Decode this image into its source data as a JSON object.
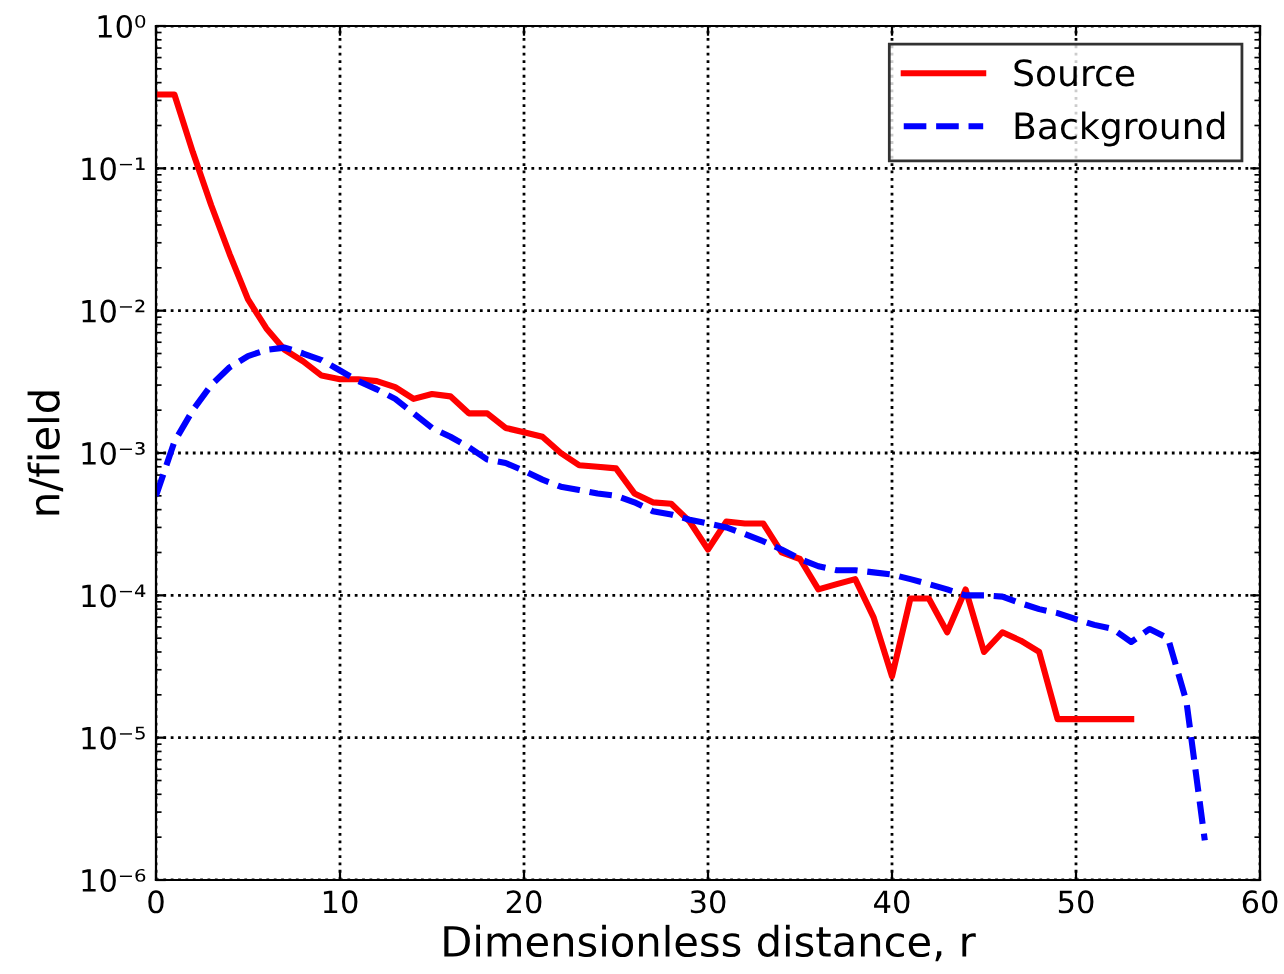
{
  "chart_data": {
    "type": "line",
    "xlabel": "Dimensionless distance, r",
    "ylabel": "n/field",
    "log": "y",
    "grid": true,
    "legend": "top right",
    "xlim": [
      0,
      60
    ],
    "xticks": [
      0,
      10,
      20,
      30,
      40,
      50,
      60
    ],
    "ylim": [
      1e-06,
      1
    ],
    "yticks": [
      {
        "value": 1e-06,
        "label": "10⁻⁶"
      },
      {
        "value": 1e-05,
        "label": "10⁻⁵"
      },
      {
        "value": 0.0001,
        "label": "10⁻⁴"
      },
      {
        "value": 0.001,
        "label": "10⁻³"
      },
      {
        "value": 0.01,
        "label": "10⁻²"
      },
      {
        "value": 0.1,
        "label": "10⁻¹"
      },
      {
        "value": 1,
        "label": "10⁰"
      }
    ],
    "series": [
      {
        "name": "Source",
        "color": "#ff0000",
        "line_style": "solid",
        "x": [
          0,
          1,
          2,
          3,
          4,
          5,
          6,
          7,
          8,
          9,
          10,
          11,
          12,
          13,
          14,
          15,
          16,
          17,
          18,
          19,
          20,
          21,
          22,
          23,
          24,
          25,
          26,
          27,
          28,
          29,
          30,
          31,
          32,
          33,
          34,
          35,
          36,
          37,
          38,
          39,
          40,
          41,
          42,
          43,
          44,
          45,
          46,
          47,
          48,
          49,
          50,
          51,
          52,
          53
        ],
        "values": [
          0.33,
          0.33,
          0.13,
          0.055,
          0.025,
          0.012,
          0.0075,
          0.0053,
          0.0044,
          0.0035,
          0.0033,
          0.0033,
          0.0032,
          0.0029,
          0.0024,
          0.0026,
          0.0025,
          0.0019,
          0.0019,
          0.0015,
          0.0014,
          0.0013,
          0.001,
          0.00082,
          0.0008,
          0.00078,
          0.00052,
          0.00045,
          0.00044,
          0.00033,
          0.00021,
          0.00033,
          0.00032,
          0.00032,
          0.0002,
          0.00018,
          0.00011,
          0.00012,
          0.00013,
          7e-05,
          2.7e-05,
          9.5e-05,
          9.5e-05,
          5.5e-05,
          0.00011,
          4e-05,
          5.5e-05,
          4.8e-05,
          4e-05,
          1.35e-05,
          1.35e-05,
          1.35e-05,
          1.35e-05,
          1.35e-05
        ]
      },
      {
        "name": "Background",
        "color": "#0000ff",
        "line_style": "dashed",
        "x": [
          0,
          1,
          2,
          3,
          4,
          5,
          6,
          7,
          8,
          9,
          10,
          11,
          12,
          13,
          14,
          15,
          16,
          17,
          18,
          19,
          20,
          21,
          22,
          23,
          24,
          25,
          26,
          27,
          28,
          29,
          30,
          31,
          32,
          33,
          34,
          35,
          36,
          37,
          38,
          39,
          40,
          41,
          42,
          43,
          44,
          45,
          46,
          47,
          48,
          49,
          50,
          51,
          52,
          53,
          54,
          55,
          56,
          57
        ],
        "values": [
          0.0005,
          0.0012,
          0.002,
          0.003,
          0.004,
          0.0048,
          0.0053,
          0.0055,
          0.005,
          0.0045,
          0.0038,
          0.0032,
          0.0028,
          0.0024,
          0.0019,
          0.0015,
          0.0013,
          0.0011,
          0.0009,
          0.00085,
          0.00075,
          0.00065,
          0.00058,
          0.00055,
          0.00052,
          0.0005,
          0.00045,
          0.00039,
          0.00037,
          0.00034,
          0.00032,
          0.0003,
          0.00027,
          0.00024,
          0.00021,
          0.00018,
          0.00016,
          0.00015,
          0.00015,
          0.000145,
          0.00014,
          0.00013,
          0.00012,
          0.00011,
          0.0001,
          0.0001,
          9.8e-05,
          8.8e-05,
          8e-05,
          7.5e-05,
          6.8e-05,
          6.2e-05,
          5.8e-05,
          4.7e-05,
          5.8e-05,
          5e-05,
          1.8e-05,
          1.9e-06
        ]
      }
    ]
  }
}
